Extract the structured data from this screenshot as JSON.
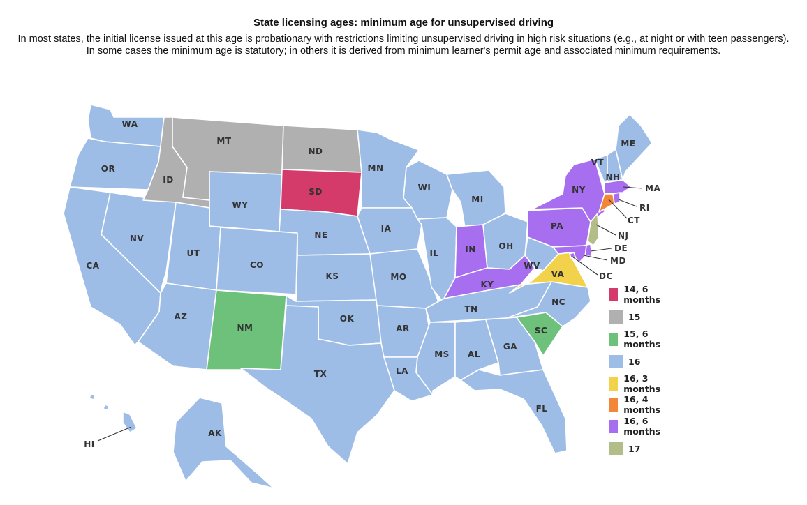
{
  "title": "State licensing ages: minimum age for unsupervised driving",
  "subtitle": "In most states, the initial license issued at this age is probationary with restrictions limiting unsupervised driving in high risk situations (e.g., at night or with teen passengers). In some cases the minimum age is statutory; in others it is derived from minimum learner's permit age and associated minimum requirements.",
  "legend": [
    {
      "key": "a14_6",
      "label": "14, 6 months",
      "color": "#d43a6a"
    },
    {
      "key": "a15",
      "label": "15",
      "color": "#b0b0b0"
    },
    {
      "key": "a15_6",
      "label": "15, 6 months",
      "color": "#6dc17a"
    },
    {
      "key": "a16",
      "label": "16",
      "color": "#9dbde6"
    },
    {
      "key": "a16_3",
      "label": "16, 3 months",
      "color": "#f2d24b"
    },
    {
      "key": "a16_4",
      "label": "16, 4 months",
      "color": "#f2873a"
    },
    {
      "key": "a16_6",
      "label": "16, 6 months",
      "color": "#a86ef0"
    },
    {
      "key": "a17",
      "label": "17",
      "color": "#b3bd89"
    }
  ],
  "states": {
    "WA": {
      "label": "WA",
      "age": "a16"
    },
    "OR": {
      "label": "OR",
      "age": "a16"
    },
    "CA": {
      "label": "CA",
      "age": "a16"
    },
    "NV": {
      "label": "NV",
      "age": "a16"
    },
    "ID": {
      "label": "ID",
      "age": "a15"
    },
    "MT": {
      "label": "MT",
      "age": "a15"
    },
    "WY": {
      "label": "WY",
      "age": "a16"
    },
    "UT": {
      "label": "UT",
      "age": "a16"
    },
    "AZ": {
      "label": "AZ",
      "age": "a16"
    },
    "CO": {
      "label": "CO",
      "age": "a16"
    },
    "NM": {
      "label": "NM",
      "age": "a15_6"
    },
    "ND": {
      "label": "ND",
      "age": "a15"
    },
    "SD": {
      "label": "SD",
      "age": "a14_6"
    },
    "NE": {
      "label": "NE",
      "age": "a16"
    },
    "KS": {
      "label": "KS",
      "age": "a16"
    },
    "OK": {
      "label": "OK",
      "age": "a16"
    },
    "TX": {
      "label": "TX",
      "age": "a16"
    },
    "MN": {
      "label": "MN",
      "age": "a16"
    },
    "IA": {
      "label": "IA",
      "age": "a16"
    },
    "MO": {
      "label": "MO",
      "age": "a16"
    },
    "AR": {
      "label": "AR",
      "age": "a16"
    },
    "LA": {
      "label": "LA",
      "age": "a16"
    },
    "WI": {
      "label": "WI",
      "age": "a16"
    },
    "IL": {
      "label": "IL",
      "age": "a16"
    },
    "MI": {
      "label": "MI",
      "age": "a16"
    },
    "IN": {
      "label": "IN",
      "age": "a16_6"
    },
    "OH": {
      "label": "OH",
      "age": "a16"
    },
    "KY": {
      "label": "KY",
      "age": "a16_6"
    },
    "TN": {
      "label": "TN",
      "age": "a16"
    },
    "MS": {
      "label": "MS",
      "age": "a16"
    },
    "AL": {
      "label": "AL",
      "age": "a16"
    },
    "GA": {
      "label": "GA",
      "age": "a16"
    },
    "FL": {
      "label": "FL",
      "age": "a16"
    },
    "SC": {
      "label": "SC",
      "age": "a15_6"
    },
    "NC": {
      "label": "NC",
      "age": "a16"
    },
    "VA": {
      "label": "VA",
      "age": "a16_3"
    },
    "WV": {
      "label": "WV",
      "age": "a16"
    },
    "PA": {
      "label": "PA",
      "age": "a16_6"
    },
    "NY": {
      "label": "NY",
      "age": "a16_6"
    },
    "VT": {
      "label": "VT",
      "age": "a16"
    },
    "NH": {
      "label": "NH",
      "age": "a16"
    },
    "ME": {
      "label": "ME",
      "age": "a16"
    },
    "MA": {
      "label": "MA",
      "age": "a16_6"
    },
    "RI": {
      "label": "RI",
      "age": "a16_6"
    },
    "CT": {
      "label": "CT",
      "age": "a16_4"
    },
    "NJ": {
      "label": "NJ",
      "age": "a17"
    },
    "DE": {
      "label": "DE",
      "age": "a16_6"
    },
    "MD": {
      "label": "MD",
      "age": "a16_6"
    },
    "DC": {
      "label": "DC",
      "age": "a16_6"
    },
    "AK": {
      "label": "AK",
      "age": "a16"
    },
    "HI": {
      "label": "HI",
      "age": "a16"
    }
  }
}
